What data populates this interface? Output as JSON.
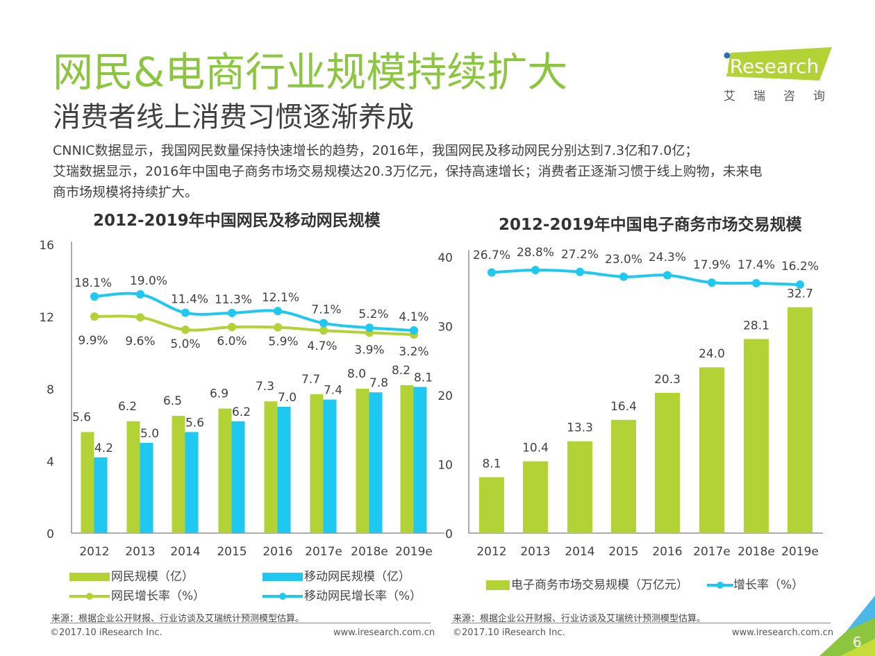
{
  "header": {
    "title": "网民&电商行业规模持续扩大",
    "subtitle": "消费者线上消费习惯逐渐养成",
    "description": [
      "CNNIC数据显示，我国网民数量保持快速增长的趋势，2016年，我国网民及移动网民分别达到7.3亿和7.0亿；",
      "艾瑞数据显示，2016年中国电子商务市场交易规模达20.3万亿元，保持高速增长；消费者正逐渐习惯于线上购物，未来电",
      "商市场规模将持续扩大。"
    ]
  },
  "logo": {
    "brand": "iResearch",
    "brand_cn": "艾瑞咨询"
  },
  "colors": {
    "green": "#b2d235",
    "blue": "#1ec8f0",
    "title_green": "#8cc63f",
    "axis": "#595959"
  },
  "chart_data": [
    {
      "type": "bar",
      "title": "2012-2019年中国网民及移动网民规模",
      "categories": [
        "2012",
        "2013",
        "2014",
        "2015",
        "2016",
        "2017e",
        "2018e",
        "2019e"
      ],
      "ylim": [
        0,
        16
      ],
      "yticks": [
        "0",
        "4",
        "8",
        "12",
        "16"
      ],
      "series": [
        {
          "name": "网民规模（亿）",
          "kind": "bar",
          "color": "#b2d235",
          "values": [
            5.6,
            6.2,
            6.5,
            6.9,
            7.3,
            7.7,
            8.0,
            8.2
          ],
          "labels": [
            "5.6",
            "6.2",
            "6.5",
            "6.9",
            "7.3",
            "7.7",
            "8.0",
            "8.2"
          ]
        },
        {
          "name": "移动网民规模（亿）",
          "kind": "bar",
          "color": "#1ec8f0",
          "values": [
            4.2,
            5.0,
            5.6,
            6.2,
            7.0,
            7.4,
            7.8,
            8.1
          ],
          "labels": [
            "4.2",
            "5.0",
            "5.6",
            "6.2",
            "7.0",
            "7.4",
            "7.8",
            "8.1"
          ]
        },
        {
          "name": "网民增长率（%）",
          "kind": "line",
          "color": "#b2d235",
          "values": [
            9.9,
            9.6,
            5.0,
            6.0,
            5.9,
            4.7,
            3.9,
            3.2
          ],
          "labels": [
            "9.9%",
            "9.6%",
            "5.0%",
            "6.0%",
            "5.9%",
            "4.7%",
            "3.9%",
            "3.2%"
          ]
        },
        {
          "name": "移动网民增长率（%）",
          "kind": "line",
          "color": "#1ec8f0",
          "values": [
            18.1,
            19.0,
            11.4,
            11.3,
            12.1,
            7.1,
            5.2,
            4.1
          ],
          "labels": [
            "18.1%",
            "19.0%",
            "11.4%",
            "11.3%",
            "12.1%",
            "7.1%",
            "5.2%",
            "4.1%"
          ]
        }
      ],
      "legend": [
        "网民规模（亿）",
        "移动网民规模（亿）",
        "网民增长率（%）",
        "移动网民增长率（%）"
      ],
      "legend_position": "bottom",
      "grid": false
    },
    {
      "type": "bar",
      "title": "2012-2019年中国电子商务市场交易规模",
      "categories": [
        "2012",
        "2013",
        "2014",
        "2015",
        "2016",
        "2017e",
        "2018e",
        "2019e"
      ],
      "ylim": [
        0,
        40
      ],
      "yticks": [
        "0",
        "10",
        "20",
        "30",
        "40"
      ],
      "series": [
        {
          "name": "电子商务市场交易规模（万亿元）",
          "kind": "bar",
          "color": "#b2d235",
          "values": [
            8.1,
            10.4,
            13.3,
            16.4,
            20.3,
            24.0,
            28.1,
            32.7
          ],
          "labels": [
            "8.1",
            "10.4",
            "13.3",
            "16.4",
            "20.3",
            "24.0",
            "28.1",
            "32.7"
          ]
        },
        {
          "name": "增长率（%）",
          "kind": "line",
          "color": "#1ec8f0",
          "values": [
            26.7,
            28.8,
            27.2,
            23.0,
            24.3,
            17.9,
            17.4,
            16.2
          ],
          "labels": [
            "26.7%",
            "28.8%",
            "27.2%",
            "23.0%",
            "24.3%",
            "17.9%",
            "17.4%",
            "16.2%"
          ]
        }
      ],
      "legend": [
        "电子商务市场交易规模（万亿元）",
        "增长率（%）"
      ],
      "legend_position": "bottom",
      "grid": false
    }
  ],
  "footer": {
    "source": "来源：根据企业公开财报、行业访谈及艾瑞统计预测模型估算。",
    "copyright": "©2017.10 iResearch Inc.",
    "website": "www.iresearch.com.cn",
    "page_number": "6"
  }
}
